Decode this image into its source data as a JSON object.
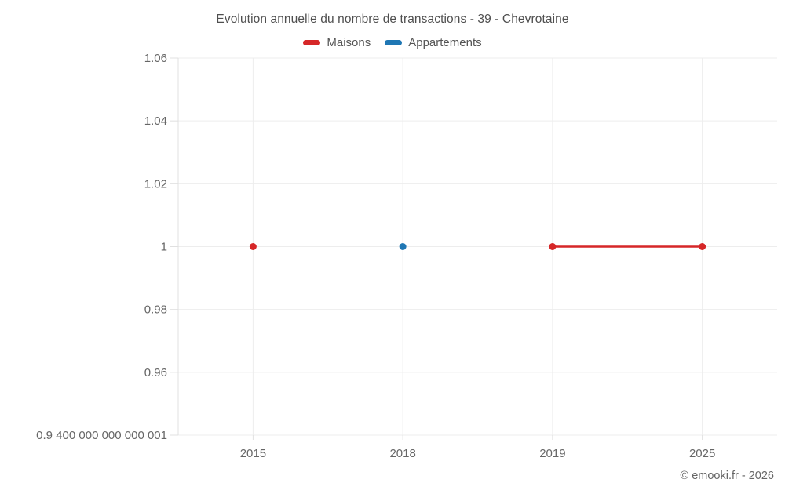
{
  "title": "Evolution annuelle du nombre de transactions - 39 - Chevrotaine",
  "footer": "© emooki.fr - 2026",
  "legend": [
    {
      "label": "Maisons",
      "color": "#d62728"
    },
    {
      "label": "Appartements",
      "color": "#1f77b4"
    }
  ],
  "colors": {
    "grid": "#ededed",
    "axis": "#e0e0e0",
    "tick_text": "#666666",
    "title_text": "#4f4f4f"
  },
  "chart_data": {
    "type": "line",
    "title": "Evolution annuelle du nombre de transactions - 39 - Chevrotaine",
    "xlabel": "",
    "ylabel": "",
    "categories": [
      "2015",
      "2018",
      "2019",
      "2025"
    ],
    "series": [
      {
        "name": "Maisons",
        "color": "#d62728",
        "values": [
          1,
          null,
          1,
          1
        ]
      },
      {
        "name": "Appartements",
        "color": "#1f77b4",
        "values": [
          null,
          1,
          null,
          null
        ]
      }
    ],
    "ylim": [
      0.9400000000000001,
      1.06
    ],
    "y_ticks": [
      1.06,
      1.04,
      1.02,
      1,
      0.98,
      0.96,
      0.9400000000000001
    ],
    "y_tick_labels": [
      "1.06",
      "1.04",
      "1.02",
      "1",
      "0.98",
      "0.96",
      "0.9 400 000 000 000 001"
    ],
    "grid": true,
    "legend_position": "top"
  }
}
